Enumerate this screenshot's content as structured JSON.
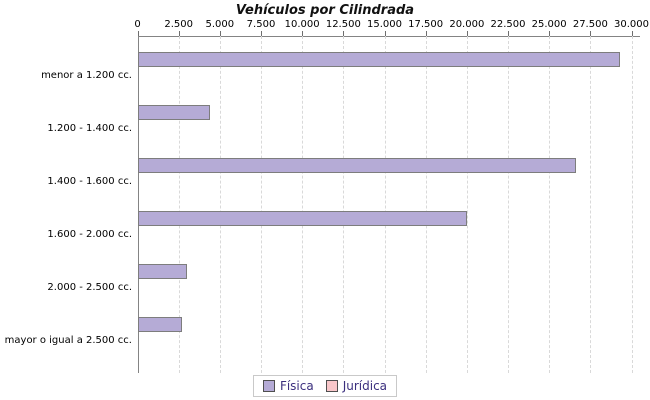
{
  "title": "Vehículos por Cilindrada",
  "colors": {
    "fisica_fill": "#b5abd6",
    "juridica_fill": "#f9c7ca",
    "bar_border": "#7d7d7d",
    "axis_line": "#848484",
    "gridline": "#d9d9d9",
    "legend_text": "#3b2f7e"
  },
  "legend": {
    "items": [
      {
        "label": "Física",
        "color": "#b5abd6"
      },
      {
        "label": "Jurídica",
        "color": "#f9c7ca"
      }
    ],
    "position": "bottom"
  },
  "chart_data": {
    "type": "bar",
    "orientation": "horizontal",
    "title": "Vehículos por Cilindrada",
    "categories": [
      "menor a 1.200 cc.",
      "1.200 - 1.400 cc.",
      "1.400 - 1.600 cc.",
      "1.600 - 2.000 cc.",
      "2.000 - 2.500 cc.",
      "mayor o igual a 2.500 cc."
    ],
    "series": [
      {
        "name": "Física",
        "color": "#b5abd6",
        "values": [
          29250,
          4400,
          26600,
          20000,
          2950,
          2650
        ]
      },
      {
        "name": "Jurídica",
        "color": "#f9c7ca",
        "values": [
          0,
          0,
          0,
          0,
          0,
          0
        ]
      }
    ],
    "xlabel": "",
    "ylabel": "",
    "xlim": [
      0,
      30000
    ],
    "xticks": [
      0,
      2500,
      5000,
      7500,
      10000,
      12500,
      15000,
      17500,
      20000,
      22500,
      25000,
      27500,
      30000
    ],
    "xtick_labels": [
      "0",
      "2.500",
      "5.000",
      "7.500",
      "10.000",
      "12.500",
      "15.000",
      "17.500",
      "20.000",
      "22.500",
      "25.000",
      "27.500",
      "30.000"
    ],
    "grid": "vertical-dashed",
    "legend_position": "bottom-center"
  }
}
